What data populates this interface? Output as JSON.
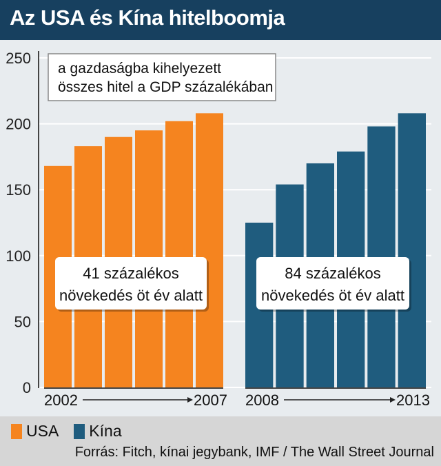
{
  "header": {
    "title": "Az USA és Kína hitelboomja"
  },
  "chart_data": {
    "type": "bar",
    "annotation": [
      "a gazdaságba kihelyezett",
      "összes hitel a GDP százalékában"
    ],
    "ylim": [
      0,
      250
    ],
    "yticks": [
      0,
      50,
      100,
      150,
      200,
      250
    ],
    "grid": true,
    "series": [
      {
        "name": "USA",
        "color": "#f5841f",
        "values": [
          168,
          183,
          190,
          195,
          202,
          208
        ],
        "start_label": "2002",
        "end_label": "2007",
        "callout": [
          "41 százalékos",
          "növekedés öt év alatt"
        ]
      },
      {
        "name": "Kína",
        "color": "#1f5c7e",
        "values": [
          125,
          154,
          170,
          179,
          198,
          208
        ],
        "start_label": "2008",
        "end_label": "2013",
        "callout": [
          "84 százalékos",
          "növekedés öt év alatt"
        ]
      }
    ]
  },
  "footer": {
    "source": "Forrás: Fitch, kínai jegybank, IMF / The Wall Street Journal"
  }
}
